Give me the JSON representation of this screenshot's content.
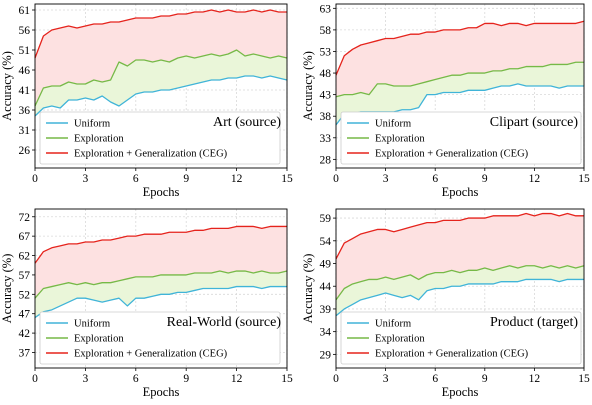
{
  "chart_data": [
    {
      "type": "line",
      "title": "Art (source)",
      "xlabel": "Epochs",
      "ylabel": "Accuracy (%)",
      "xlim": [
        0,
        15
      ],
      "ylim": [
        21.5,
        62.5
      ],
      "xticks": [
        0,
        3,
        6,
        9,
        12,
        15
      ],
      "yticks": [
        26,
        31,
        36,
        41,
        46,
        51,
        56,
        61
      ],
      "grid": true,
      "legend_position": "bottom-left",
      "series": [
        {
          "name": "Uniform",
          "color": "#40b4d8",
          "x": [
            0,
            0.5,
            1,
            1.5,
            2,
            2.5,
            3,
            3.5,
            4,
            4.5,
            5,
            5.5,
            6,
            6.5,
            7,
            7.5,
            8,
            8.5,
            9,
            9.5,
            10,
            10.5,
            11,
            11.5,
            12,
            12.5,
            13,
            13.5,
            14,
            14.5,
            15
          ],
          "y": [
            34.5,
            36.5,
            37.0,
            36.5,
            38.5,
            38.5,
            39.0,
            38.5,
            39.5,
            38.0,
            37.0,
            38.5,
            40.0,
            40.5,
            40.5,
            41.0,
            41.0,
            41.5,
            42.0,
            42.5,
            43.0,
            43.5,
            43.5,
            44.0,
            44.0,
            44.5,
            44.5,
            44.0,
            44.5,
            44.0,
            43.5
          ]
        },
        {
          "name": "Exploration",
          "color": "#76b947",
          "x": [
            0,
            0.5,
            1,
            1.5,
            2,
            2.5,
            3,
            3.5,
            4,
            4.5,
            5,
            5.5,
            6,
            6.5,
            7,
            7.5,
            8,
            8.5,
            9,
            9.5,
            10,
            10.5,
            11,
            11.5,
            12,
            12.5,
            13,
            13.5,
            14,
            14.5,
            15
          ],
          "y": [
            37.0,
            41.5,
            42.0,
            42.0,
            43.0,
            42.5,
            42.5,
            43.5,
            43.0,
            43.5,
            48.0,
            47.0,
            48.5,
            48.5,
            48.0,
            48.5,
            48.0,
            49.0,
            49.5,
            49.0,
            49.5,
            50.0,
            49.5,
            50.0,
            51.0,
            49.5,
            50.0,
            49.5,
            49.0,
            49.5,
            49.0
          ]
        },
        {
          "name": "Exploration + Generalization (CEG)",
          "color": "#e5231c",
          "x": [
            0,
            0.5,
            1,
            1.5,
            2,
            2.5,
            3,
            3.5,
            4,
            4.5,
            5,
            5.5,
            6,
            6.5,
            7,
            7.5,
            8,
            8.5,
            9,
            9.5,
            10,
            10.5,
            11,
            11.5,
            12,
            12.5,
            13,
            13.5,
            14,
            14.5,
            15
          ],
          "y": [
            49.0,
            54.5,
            56.0,
            56.5,
            57.0,
            56.5,
            57.0,
            57.5,
            57.5,
            58.0,
            58.0,
            58.5,
            59.0,
            59.0,
            59.0,
            59.5,
            59.5,
            60.0,
            60.0,
            60.5,
            60.5,
            61.0,
            60.5,
            61.0,
            60.5,
            60.5,
            61.0,
            60.5,
            61.0,
            60.5,
            60.5
          ]
        }
      ]
    },
    {
      "type": "line",
      "title": "Clipart (source)",
      "xlabel": "Epochs",
      "ylabel": "Accuracy (%)",
      "xlim": [
        0,
        15
      ],
      "ylim": [
        26,
        64
      ],
      "xticks": [
        0,
        3,
        6,
        9,
        12,
        15
      ],
      "yticks": [
        28,
        33,
        38,
        43,
        48,
        53,
        58,
        63
      ],
      "grid": true,
      "legend_position": "bottom-left",
      "series": [
        {
          "name": "Uniform",
          "color": "#40b4d8",
          "x": [
            0,
            0.5,
            1,
            1.5,
            2,
            2.5,
            3,
            3.5,
            4,
            4.5,
            5,
            5.5,
            6,
            6.5,
            7,
            7.5,
            8,
            8.5,
            9,
            9.5,
            10,
            10.5,
            11,
            11.5,
            12,
            12.5,
            13,
            13.5,
            14,
            14.5,
            15
          ],
          "y": [
            36.0,
            38.5,
            38.5,
            39.0,
            39.0,
            39.0,
            39.0,
            39.0,
            39.5,
            39.5,
            40.0,
            43.0,
            43.0,
            43.5,
            43.5,
            43.5,
            44.0,
            44.0,
            44.0,
            44.5,
            45.0,
            45.0,
            45.5,
            45.0,
            45.0,
            45.0,
            45.0,
            44.5,
            45.0,
            45.0,
            45.0
          ]
        },
        {
          "name": "Exploration",
          "color": "#76b947",
          "x": [
            0,
            0.5,
            1,
            1.5,
            2,
            2.5,
            3,
            3.5,
            4,
            4.5,
            5,
            5.5,
            6,
            6.5,
            7,
            7.5,
            8,
            8.5,
            9,
            9.5,
            10,
            10.5,
            11,
            11.5,
            12,
            12.5,
            13,
            13.5,
            14,
            14.5,
            15
          ],
          "y": [
            42.5,
            43.0,
            43.0,
            43.5,
            43.0,
            45.5,
            45.5,
            45.0,
            45.0,
            45.0,
            45.5,
            46.0,
            46.5,
            47.0,
            47.5,
            47.5,
            48.0,
            48.0,
            48.0,
            48.5,
            48.5,
            49.0,
            49.0,
            49.5,
            49.5,
            49.5,
            50.0,
            50.0,
            50.0,
            50.5,
            50.5
          ]
        },
        {
          "name": "Exploration + Generalization (CEG)",
          "color": "#e5231c",
          "x": [
            0,
            0.5,
            1,
            1.5,
            2,
            2.5,
            3,
            3.5,
            4,
            4.5,
            5,
            5.5,
            6,
            6.5,
            7,
            7.5,
            8,
            8.5,
            9,
            9.5,
            10,
            10.5,
            11,
            11.5,
            12,
            12.5,
            13,
            13.5,
            14,
            14.5,
            15
          ],
          "y": [
            47.5,
            52.0,
            53.5,
            54.5,
            55.0,
            55.5,
            56.0,
            56.0,
            56.5,
            57.0,
            57.0,
            57.5,
            57.5,
            58.0,
            58.0,
            58.0,
            58.5,
            58.5,
            59.5,
            59.5,
            59.0,
            59.5,
            59.5,
            59.0,
            59.5,
            59.5,
            59.5,
            59.5,
            59.5,
            59.5,
            60.0
          ]
        }
      ]
    },
    {
      "type": "line",
      "title": "Real-World (source)",
      "xlabel": "Epochs",
      "ylabel": "Accuracy (%)",
      "xlim": [
        0,
        15
      ],
      "ylim": [
        33,
        74
      ],
      "xticks": [
        0,
        3,
        6,
        9,
        12,
        15
      ],
      "yticks": [
        37,
        42,
        47,
        52,
        57,
        62,
        67,
        72
      ],
      "grid": true,
      "legend_position": "bottom-left",
      "series": [
        {
          "name": "Uniform",
          "color": "#40b4d8",
          "x": [
            0,
            0.5,
            1,
            1.5,
            2,
            2.5,
            3,
            3.5,
            4,
            4.5,
            5,
            5.5,
            6,
            6.5,
            7,
            7.5,
            8,
            8.5,
            9,
            9.5,
            10,
            10.5,
            11,
            11.5,
            12,
            12.5,
            13,
            13.5,
            14,
            14.5,
            15
          ],
          "y": [
            46.0,
            47.5,
            48.0,
            49.0,
            50.0,
            51.0,
            51.0,
            50.5,
            50.0,
            50.5,
            51.0,
            49.0,
            51.0,
            51.0,
            51.5,
            52.0,
            52.0,
            52.5,
            52.5,
            53.0,
            53.5,
            53.5,
            53.5,
            53.5,
            54.0,
            54.0,
            54.0,
            53.5,
            54.0,
            54.0,
            54.0
          ]
        },
        {
          "name": "Exploration",
          "color": "#76b947",
          "x": [
            0,
            0.5,
            1,
            1.5,
            2,
            2.5,
            3,
            3.5,
            4,
            4.5,
            5,
            5.5,
            6,
            6.5,
            7,
            7.5,
            8,
            8.5,
            9,
            9.5,
            10,
            10.5,
            11,
            11.5,
            12,
            12.5,
            13,
            13.5,
            14,
            14.5,
            15
          ],
          "y": [
            51.0,
            53.5,
            54.0,
            54.5,
            55.0,
            54.5,
            55.0,
            54.5,
            55.0,
            55.0,
            55.5,
            56.0,
            56.5,
            56.5,
            56.5,
            57.0,
            57.0,
            57.0,
            57.0,
            57.5,
            57.5,
            57.5,
            58.0,
            57.5,
            58.0,
            58.0,
            57.5,
            58.0,
            57.5,
            57.5,
            58.0
          ]
        },
        {
          "name": "Exploration + Generalization (CEG)",
          "color": "#e5231c",
          "x": [
            0,
            0.5,
            1,
            1.5,
            2,
            2.5,
            3,
            3.5,
            4,
            4.5,
            5,
            5.5,
            6,
            6.5,
            7,
            7.5,
            8,
            8.5,
            9,
            9.5,
            10,
            10.5,
            11,
            11.5,
            12,
            12.5,
            13,
            13.5,
            14,
            14.5,
            15
          ],
          "y": [
            60.0,
            63.0,
            64.0,
            64.5,
            65.0,
            65.0,
            65.5,
            65.5,
            66.0,
            66.0,
            66.5,
            67.0,
            67.0,
            67.5,
            67.5,
            67.5,
            68.0,
            68.0,
            68.0,
            68.5,
            68.5,
            69.0,
            69.0,
            69.0,
            69.5,
            69.5,
            69.5,
            69.0,
            69.5,
            69.5,
            69.5
          ]
        }
      ]
    },
    {
      "type": "line",
      "title": "Product (target)",
      "xlabel": "Epochs",
      "ylabel": "Accuracy (%)",
      "xlim": [
        0,
        15
      ],
      "ylim": [
        26,
        61
      ],
      "xticks": [
        0,
        3,
        6,
        9,
        12,
        15
      ],
      "yticks": [
        29,
        34,
        39,
        44,
        49,
        54,
        59
      ],
      "grid": true,
      "legend_position": "bottom-left",
      "series": [
        {
          "name": "Uniform",
          "color": "#40b4d8",
          "x": [
            0,
            0.5,
            1,
            1.5,
            2,
            2.5,
            3,
            3.5,
            4,
            4.5,
            5,
            5.5,
            6,
            6.5,
            7,
            7.5,
            8,
            8.5,
            9,
            9.5,
            10,
            10.5,
            11,
            11.5,
            12,
            12.5,
            13,
            13.5,
            14,
            14.5,
            15
          ],
          "y": [
            37.5,
            39.0,
            40.0,
            41.0,
            41.5,
            42.0,
            42.5,
            42.0,
            41.5,
            42.0,
            41.0,
            43.0,
            43.5,
            43.5,
            44.0,
            44.0,
            44.5,
            44.5,
            44.5,
            44.5,
            45.0,
            45.0,
            45.0,
            45.5,
            45.5,
            45.5,
            45.5,
            45.0,
            45.5,
            45.5,
            45.5
          ]
        },
        {
          "name": "Exploration",
          "color": "#76b947",
          "x": [
            0,
            0.5,
            1,
            1.5,
            2,
            2.5,
            3,
            3.5,
            4,
            4.5,
            5,
            5.5,
            6,
            6.5,
            7,
            7.5,
            8,
            8.5,
            9,
            9.5,
            10,
            10.5,
            11,
            11.5,
            12,
            12.5,
            13,
            13.5,
            14,
            14.5,
            15
          ],
          "y": [
            41.0,
            43.5,
            44.5,
            45.0,
            45.5,
            45.5,
            46.0,
            45.5,
            46.0,
            46.5,
            45.5,
            46.5,
            47.0,
            47.0,
            47.5,
            47.0,
            47.5,
            47.5,
            48.0,
            47.5,
            48.0,
            48.5,
            48.0,
            48.5,
            48.5,
            48.0,
            48.5,
            48.0,
            48.5,
            48.0,
            48.5
          ]
        },
        {
          "name": "Exploration + Generalization (CEG)",
          "color": "#e5231c",
          "x": [
            0,
            0.5,
            1,
            1.5,
            2,
            2.5,
            3,
            3.5,
            4,
            4.5,
            5,
            5.5,
            6,
            6.5,
            7,
            7.5,
            8,
            8.5,
            9,
            9.5,
            10,
            10.5,
            11,
            11.5,
            12,
            12.5,
            13,
            13.5,
            14,
            14.5,
            15
          ],
          "y": [
            50.0,
            53.5,
            54.5,
            55.5,
            56.0,
            56.5,
            56.5,
            56.0,
            56.5,
            57.0,
            57.5,
            58.0,
            58.0,
            58.5,
            58.5,
            58.5,
            59.0,
            59.0,
            59.0,
            59.5,
            59.5,
            59.5,
            59.5,
            60.0,
            59.5,
            60.0,
            60.0,
            59.5,
            60.0,
            59.5,
            59.5
          ]
        }
      ]
    }
  ]
}
